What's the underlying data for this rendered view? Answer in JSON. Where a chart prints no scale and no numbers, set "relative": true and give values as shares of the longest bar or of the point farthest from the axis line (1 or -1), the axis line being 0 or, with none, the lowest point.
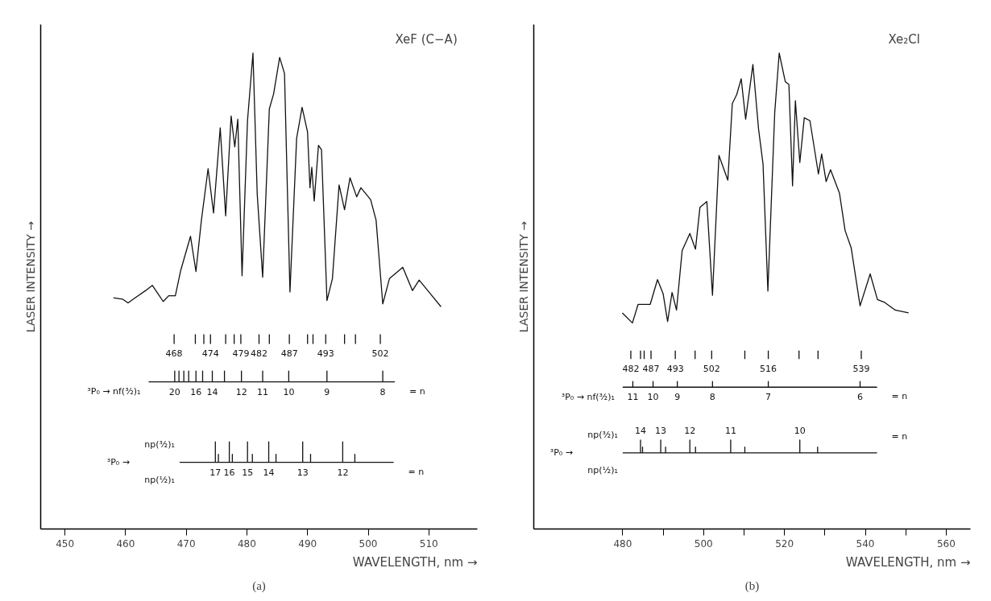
{
  "chart_data": [
    {
      "type": "line",
      "title": "XeF (C−A)",
      "xlabel": "WAVELENGTH, nm →",
      "ylabel": "LASER INTENSITY →",
      "relative": true,
      "xlim": [
        446,
        518
      ],
      "xticks": [
        450,
        460,
        470,
        480,
        490,
        500,
        510
      ],
      "line_style": "solid",
      "series": [
        {
          "color": "#111111",
          "x": [
            458.0,
            459.5,
            460.4,
            461.7,
            463.3,
            464.4,
            465.3,
            466.2,
            467.1,
            468.2,
            469.1,
            470.7,
            471.6,
            472.5,
            473.6,
            474.5,
            475.6,
            476.5,
            477.4,
            478.0,
            478.5,
            479.2,
            480.1,
            481.0,
            481.7,
            482.6,
            483.7,
            484.4,
            485.4,
            486.2,
            487.1,
            488.2,
            489.1,
            490.0,
            490.4,
            490.7,
            491.1,
            491.8,
            492.3,
            493.2,
            494.1,
            495.2,
            496.1,
            497.0,
            498.1,
            498.8,
            500.4,
            501.3,
            502.4,
            503.5,
            505.7,
            507.3,
            508.4,
            510.2,
            512.0
          ],
          "values": [
            0.486,
            0.483,
            0.475,
            0.487,
            0.501,
            0.512,
            0.495,
            0.478,
            0.49,
            0.49,
            0.544,
            0.615,
            0.541,
            0.649,
            0.757,
            0.664,
            0.843,
            0.658,
            0.868,
            0.803,
            0.861,
            0.532,
            0.858,
            1,
            0.704,
            0.529,
            0.883,
            0.914,
            0.991,
            0.957,
            0.498,
            0.821,
            0.886,
            0.834,
            0.717,
            0.76,
            0.689,
            0.806,
            0.797,
            0.48,
            0.526,
            0.723,
            0.671,
            0.738,
            0.698,
            0.717,
            0.692,
            0.649,
            0.473,
            0.526,
            0.55,
            0.501,
            0.523,
            0.495,
            0.467
          ]
        },
        {
          "color": "#111111",
          "x": [
            468,
            468,
            null,
            471.5,
            471.5,
            null,
            472.9,
            472.9,
            null,
            474,
            474,
            null,
            476.5,
            476.5,
            null,
            477.9,
            477.9,
            null,
            479,
            479,
            null,
            482,
            482,
            null,
            483.7,
            483.7,
            null,
            487,
            487,
            null,
            490.0,
            490.0,
            null,
            490.9,
            490.9,
            null,
            493,
            493,
            null,
            496.1,
            496.1,
            null,
            497.9,
            497.9,
            null,
            502,
            502,
            null
          ],
          "values": [
            0.389,
            0.409,
            null,
            0.389,
            0.409,
            null,
            0.389,
            0.409,
            null,
            0.389,
            0.409,
            null,
            0.389,
            0.409,
            null,
            0.389,
            0.409,
            null,
            0.389,
            0.409,
            null,
            0.389,
            0.409,
            null,
            0.389,
            0.409,
            null,
            0.389,
            0.409,
            null,
            0.389,
            0.409,
            null,
            0.389,
            0.409,
            null,
            0.389,
            0.409,
            null,
            0.389,
            0.409,
            null,
            0.389,
            0.409,
            null,
            0.389,
            0.409,
            null
          ]
        },
        {
          "name": "³P₀ → nf(³⁄₂)₁",
          "color": "#111111",
          "x": [
            463.8,
            468.1,
            468.1,
            468.1,
            468.8,
            468.8,
            468.8,
            469.6,
            469.6,
            469.6,
            470.4,
            470.4,
            470.4,
            471.6,
            471.6,
            471.6,
            472.7,
            472.7,
            472.7,
            474.3,
            474.3,
            474.3,
            476.3,
            476.3,
            476.3,
            479.1,
            479.1,
            479.1,
            482.6,
            482.6,
            482.6,
            486.9,
            486.9,
            486.9,
            493.2,
            493.2,
            493.2,
            502.4,
            502.4,
            502.4,
            504.4
          ],
          "values": [
            0.309,
            0.309,
            0.332,
            0.309,
            0.309,
            0.332,
            0.309,
            0.309,
            0.332,
            0.309,
            0.309,
            0.332,
            0.309,
            0.309,
            0.332,
            0.309,
            0.309,
            0.332,
            0.309,
            0.309,
            0.332,
            0.309,
            0.309,
            0.332,
            0.309,
            0.309,
            0.332,
            0.309,
            0.309,
            0.332,
            0.309,
            0.309,
            0.332,
            0.309,
            0.309,
            0.332,
            0.309,
            0.309,
            0.332,
            0.309,
            0.309
          ]
        },
        {
          "name": "³P₀ → np(³⁄₂)₁ np(¹⁄₂)₁",
          "color": "#111111",
          "x": [
            468.9,
            474.8,
            474.8,
            474.8,
            475.3,
            475.3,
            475.3,
            477.1,
            477.1,
            477.1,
            477.6,
            477.6,
            477.6,
            480.1,
            480.1,
            480.1,
            480.9,
            480.9,
            480.9,
            483.6,
            483.6,
            483.6,
            484.8,
            484.8,
            484.8,
            489.2,
            489.2,
            489.2,
            490.5,
            490.5,
            490.5,
            495.8,
            495.8,
            495.8,
            497.8,
            497.8,
            497.8,
            504.2
          ],
          "values": [
            0.14,
            0.14,
            0.183,
            0.14,
            0.14,
            0.157,
            0.14,
            0.14,
            0.183,
            0.14,
            0.14,
            0.157,
            0.14,
            0.14,
            0.183,
            0.14,
            0.14,
            0.157,
            0.14,
            0.14,
            0.183,
            0.14,
            0.14,
            0.157,
            0.14,
            0.14,
            0.183,
            0.14,
            0.14,
            0.157,
            0.14,
            0.14,
            0.183,
            0.14,
            0.14,
            0.157,
            0.14,
            0.14
          ]
        }
      ],
      "annotations": [
        {
          "text": "468",
          "x": 468,
          "y": 0.389
        },
        {
          "text": "474",
          "x": 474,
          "y": 0.389
        },
        {
          "text": "479",
          "x": 479,
          "y": 0.389
        },
        {
          "text": "482",
          "x": 482,
          "y": 0.389
        },
        {
          "text": "487",
          "x": 487,
          "y": 0.389
        },
        {
          "text": "493",
          "x": 493,
          "y": 0.389
        },
        {
          "text": "502",
          "x": 502,
          "y": 0.389
        },
        {
          "text": "20",
          "x": 468.1,
          "y": 0.309
        },
        {
          "text": "16",
          "x": 471.6,
          "y": 0.309
        },
        {
          "text": "14",
          "x": 474.3,
          "y": 0.309
        },
        {
          "text": "12",
          "x": 479.1,
          "y": 0.309
        },
        {
          "text": "11",
          "x": 482.6,
          "y": 0.309
        },
        {
          "text": "10",
          "x": 486.9,
          "y": 0.309
        },
        {
          "text": "9",
          "x": 493.2,
          "y": 0.309
        },
        {
          "text": "8",
          "x": 502.4,
          "y": 0.309
        },
        {
          "text": "= n",
          "x": 504.4,
          "y": 0.309
        },
        {
          "text": "17",
          "x": 474.8,
          "y": 0.14
        },
        {
          "text": "16",
          "x": 477.1,
          "y": 0.14
        },
        {
          "text": "15",
          "x": 480.1,
          "y": 0.14
        },
        {
          "text": "14",
          "x": 483.6,
          "y": 0.14
        },
        {
          "text": "13",
          "x": 489.2,
          "y": 0.14
        },
        {
          "text": "12",
          "x": 495.8,
          "y": 0.14
        },
        {
          "text": "= n",
          "x": 504.2,
          "y": 0.14
        },
        "(a)"
      ]
    },
    {
      "type": "line",
      "title": "Xe₂Cl",
      "xlabel": "WAVELENGTH, nm →",
      "ylabel": "LASER INTENSITY →",
      "relative": true,
      "xlim": [
        458,
        566
      ],
      "xticks": [
        480,
        {
          "value": 490,
          "label": null
        },
        500,
        {
          "value": 510,
          "label": null
        },
        520,
        {
          "value": 530,
          "label": null
        },
        540,
        {
          "value": 550,
          "label": null
        },
        560
      ],
      "line_style": "solid",
      "series": [
        {
          "color": "#111111",
          "x": [
            479.9,
            482.4,
            483.8,
            486.8,
            488.6,
            490.0,
            491.1,
            492.2,
            493.3,
            494.7,
            496.6,
            498.0,
            499.1,
            500.8,
            502.2,
            503.8,
            506.0,
            507.1,
            508.2,
            509.3,
            510.4,
            512.2,
            513.6,
            514.7,
            515.9,
            517.6,
            518.7,
            520.2,
            521.1,
            522.0,
            522.7,
            523.8,
            524.9,
            526.3,
            528.4,
            529.2,
            530.3,
            531.4,
            533.6,
            535.0,
            536.5,
            538.7,
            541.2,
            543.0,
            544.8,
            547.4,
            550.7
          ],
          "values": [
            0.454,
            0.433,
            0.472,
            0.472,
            0.524,
            0.494,
            0.436,
            0.497,
            0.46,
            0.585,
            0.621,
            0.588,
            0.676,
            0.688,
            0.491,
            0.785,
            0.733,
            0.894,
            0.913,
            0.946,
            0.861,
            0.976,
            0.84,
            0.767,
            0.5,
            0.876,
            1,
            0.94,
            0.934,
            0.721,
            0.9,
            0.77,
            0.864,
            0.858,
            0.746,
            0.788,
            0.73,
            0.755,
            0.706,
            0.627,
            0.591,
            0.469,
            0.536,
            0.482,
            0.476,
            0.46,
            0.454
          ]
        },
        {
          "color": "#111111",
          "x": [
            482,
            482,
            null,
            484.4,
            484.4,
            null,
            485.3,
            485.3,
            null,
            487,
            487,
            null,
            493,
            493,
            null,
            497.9,
            497.9,
            null,
            502,
            502,
            null,
            510.2,
            510.2,
            null,
            516,
            516,
            null,
            523.6,
            523.6,
            null,
            528.3,
            528.3,
            null,
            539,
            539,
            null
          ],
          "values": [
            0.357,
            0.375,
            null,
            0.357,
            0.375,
            null,
            0.357,
            0.375,
            null,
            0.357,
            0.375,
            null,
            0.357,
            0.375,
            null,
            0.357,
            0.375,
            null,
            0.357,
            0.375,
            null,
            0.357,
            0.375,
            null,
            0.357,
            0.375,
            null,
            0.357,
            0.375,
            null,
            0.357,
            0.375,
            null,
            0.357,
            0.375,
            null
          ]
        },
        {
          "name": "³P₀ → nf(³⁄₂)₁",
          "color": "#111111",
          "x": [
            480.0,
            482.5,
            482.5,
            482.5,
            487.5,
            487.5,
            487.5,
            493.5,
            493.5,
            493.5,
            502.2,
            502.2,
            502.2,
            516.0,
            516.0,
            516.0,
            538.7,
            538.7,
            538.7,
            542.9
          ],
          "values": [
            0.298,
            0.298,
            0.31,
            0.298,
            0.298,
            0.31,
            0.298,
            0.298,
            0.31,
            0.298,
            0.298,
            0.31,
            0.298,
            0.298,
            0.31,
            0.298,
            0.298,
            0.31,
            0.298,
            0.298
          ]
        },
        {
          "name": "³P₀ → np(³⁄₂)₁ np(¹⁄₂)₁",
          "color": "#111111",
          "x": [
            480.0,
            484.4,
            484.4,
            484.4,
            484.9,
            484.9,
            484.9,
            489.4,
            489.4,
            489.4,
            490.6,
            490.6,
            490.6,
            496.6,
            496.6,
            496.6,
            498.0,
            498.0,
            498.0,
            506.7,
            506.7,
            506.7,
            510.2,
            510.2,
            510.2,
            523.8,
            523.8,
            523.8,
            528.2,
            528.2,
            528.2,
            542.9
          ],
          "values": [
            0.16,
            0.16,
            0.187,
            0.16,
            0.16,
            0.172,
            0.16,
            0.16,
            0.187,
            0.16,
            0.16,
            0.172,
            0.16,
            0.16,
            0.187,
            0.16,
            0.16,
            0.172,
            0.16,
            0.16,
            0.187,
            0.16,
            0.16,
            0.172,
            0.16,
            0.16,
            0.187,
            0.16,
            0.16,
            0.172,
            0.16,
            0.16
          ]
        }
      ],
      "annotations": [
        {
          "text": "482",
          "x": 482,
          "y": 0.357
        },
        {
          "text": "487",
          "x": 487,
          "y": 0.357
        },
        {
          "text": "493",
          "x": 493,
          "y": 0.357
        },
        {
          "text": "502",
          "x": 502,
          "y": 0.357
        },
        {
          "text": "516",
          "x": 516,
          "y": 0.357
        },
        {
          "text": "539",
          "x": 539,
          "y": 0.357
        },
        {
          "text": "11",
          "x": 482.5,
          "y": 0.298
        },
        {
          "text": "10",
          "x": 487.5,
          "y": 0.298
        },
        {
          "text": "9",
          "x": 493.5,
          "y": 0.298
        },
        {
          "text": "8",
          "x": 502.2,
          "y": 0.298
        },
        {
          "text": "7",
          "x": 516.0,
          "y": 0.298
        },
        {
          "text": "6",
          "x": 538.7,
          "y": 0.298
        },
        {
          "text": "= n",
          "x": 542.9,
          "y": 0.298
        },
        {
          "text": "14",
          "x": 484.4,
          "y": 0.187
        },
        {
          "text": "13",
          "x": 489.4,
          "y": 0.187
        },
        {
          "text": "12",
          "x": 496.6,
          "y": 0.187
        },
        {
          "text": "11",
          "x": 506.7,
          "y": 0.187
        },
        {
          "text": "10",
          "x": 523.8,
          "y": 0.187
        },
        {
          "text": "= n",
          "x": 542.9,
          "y": 0.16
        },
        "(b)"
      ]
    }
  ]
}
